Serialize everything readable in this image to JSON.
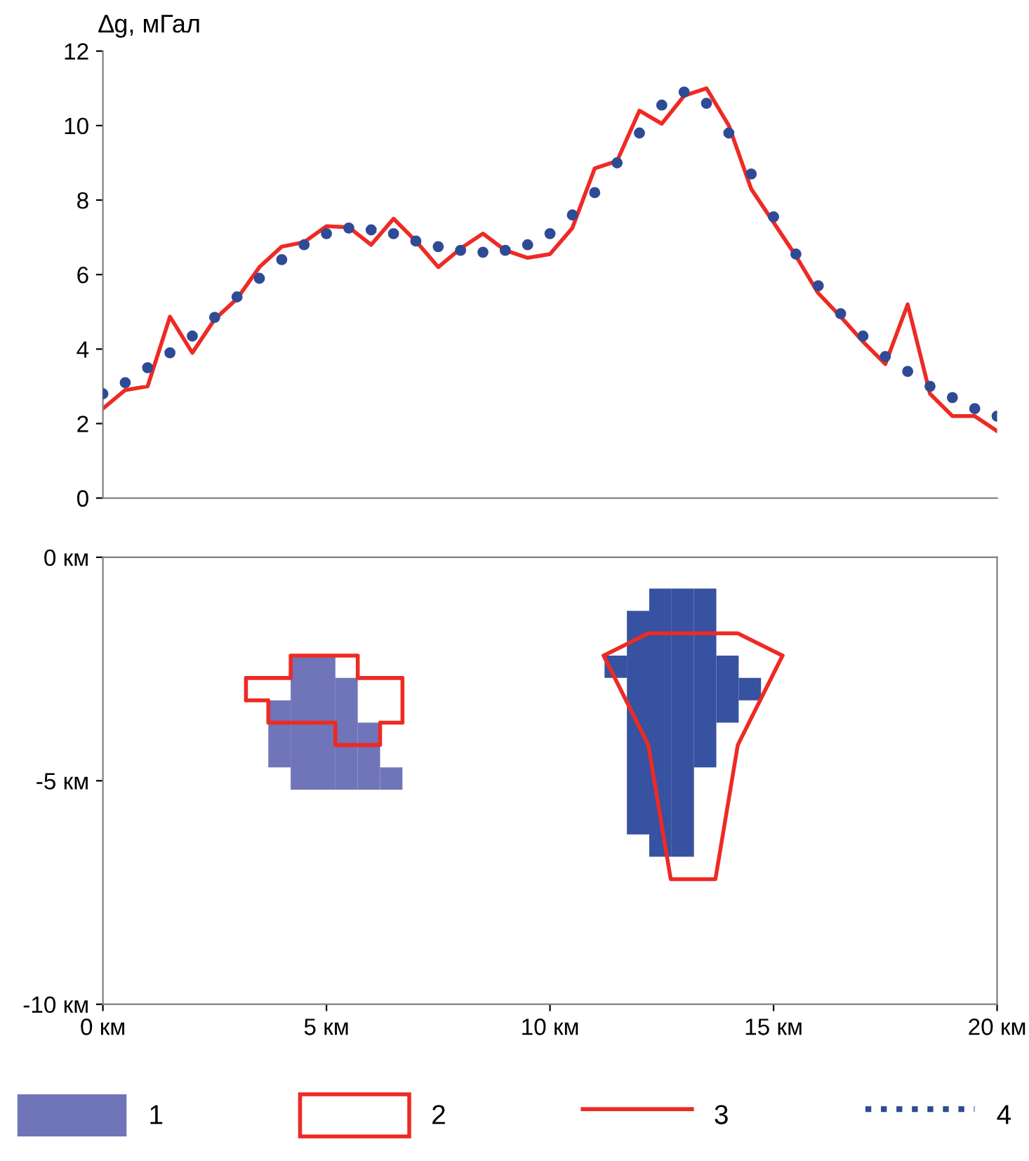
{
  "chart_data": [
    {
      "type": "line",
      "ylabel": "∆g, мГал",
      "xlim": [
        0,
        20
      ],
      "ylim": [
        0,
        12
      ],
      "yticks": [
        0,
        2,
        4,
        6,
        8,
        10,
        12
      ],
      "tick_labels": "y",
      "grid": false,
      "legend": "bottom",
      "x": [
        0,
        0.5,
        1,
        1.5,
        2,
        2.5,
        3,
        3.5,
        4,
        4.5,
        5,
        5.5,
        6,
        6.5,
        7,
        7.5,
        8,
        8.5,
        9,
        9.5,
        10,
        10.5,
        11,
        11.5,
        12,
        12.5,
        13,
        13.5,
        14,
        14.5,
        15,
        15.5,
        16,
        16.5,
        17,
        17.5,
        18,
        18.5,
        19,
        19.5,
        20
      ],
      "series": [
        {
          "name": "3",
          "type": "line",
          "color": "#ee2a24",
          "line_style": "solid",
          "values": [
            2.4,
            2.9,
            3.0,
            4.87,
            3.9,
            4.8,
            5.35,
            6.2,
            6.75,
            6.87,
            7.3,
            7.27,
            6.8,
            7.5,
            6.9,
            6.2,
            6.7,
            7.1,
            6.65,
            6.45,
            6.55,
            7.25,
            8.85,
            9.05,
            10.4,
            10.05,
            10.8,
            11.0,
            10.0,
            8.3,
            7.4,
            6.5,
            5.5,
            4.87,
            4.2,
            3.6,
            5.2,
            2.8,
            2.2,
            2.2,
            1.8
          ]
        },
        {
          "name": "4",
          "type": "scatter",
          "color": "#2f4b95",
          "marker": "circle",
          "values": [
            2.8,
            3.1,
            3.5,
            3.9,
            4.35,
            4.85,
            5.4,
            5.9,
            6.4,
            6.8,
            7.1,
            7.25,
            7.2,
            7.1,
            6.9,
            6.75,
            6.65,
            6.6,
            6.65,
            6.8,
            7.1,
            7.6,
            8.2,
            9.0,
            9.8,
            10.55,
            10.9,
            10.6,
            9.8,
            8.7,
            7.55,
            6.55,
            5.7,
            4.95,
            4.35,
            3.8,
            3.4,
            3.0,
            2.7,
            2.4,
            2.2
          ]
        }
      ]
    },
    {
      "type": "bar",
      "xlim": [
        0,
        20
      ],
      "ylim": [
        -10,
        0
      ],
      "grid": false,
      "legend": "bottom",
      "xticks": [
        {
          "value": 0,
          "label": "0 км"
        },
        {
          "value": 5,
          "label": "5 км"
        },
        {
          "value": 10,
          "label": "10 км"
        },
        {
          "value": 15,
          "label": "15 км"
        },
        {
          "value": 20,
          "label": "20 км"
        }
      ],
      "yticks": [
        {
          "value": 0,
          "label": "0 км"
        },
        {
          "value": -5,
          "label": "-5 км"
        },
        {
          "value": -10,
          "label": "-10 км"
        }
      ],
      "series": [
        {
          "name": "1",
          "type": "bar",
          "color": "#7074b8",
          "x": [
            3.95,
            4.45,
            4.95,
            5.45,
            5.95,
            6.45
          ],
          "base": [
            -4.7,
            -5.2,
            -5.2,
            -5.2,
            -5.2,
            -5.2
          ],
          "values": [
            1.5,
            3.0,
            3.0,
            2.5,
            1.5,
            0.5
          ]
        },
        {
          "type": "bar",
          "color": "#3652a0",
          "x": [
            11.47,
            11.97,
            12.47,
            12.97,
            13.47,
            13.97,
            14.47
          ],
          "base": [
            -2.7,
            -6.2,
            -6.7,
            -6.7,
            -4.7,
            -3.7,
            -3.2
          ],
          "values": [
            0.5,
            5.0,
            6.0,
            6.0,
            4.0,
            1.5,
            0.5
          ]
        },
        {
          "name": "2",
          "type": "line",
          "color": "#ee2a24",
          "x": [
            3.2,
            3.2,
            4.2,
            4.2,
            5.7,
            5.7,
            6.7,
            6.7
          ],
          "values": [
            -3.2,
            -2.7,
            -2.7,
            -2.2,
            -2.2,
            -2.7,
            -2.7,
            -3.7
          ]
        },
        {
          "type": "line",
          "color": "#ee2a24",
          "x": [
            3.2,
            3.7,
            3.7,
            5.2,
            5.2,
            6.2,
            6.2,
            6.7
          ],
          "values": [
            -3.2,
            -3.2,
            -3.7,
            -3.7,
            -4.2,
            -4.2,
            -3.7,
            -3.7
          ]
        },
        {
          "type": "line",
          "color": "#ee2a24",
          "x": [
            11.2,
            12.2,
            14.2,
            15.2
          ],
          "values": [
            -2.2,
            -1.7,
            -1.7,
            -2.2
          ]
        },
        {
          "type": "line",
          "color": "#ee2a24",
          "x": [
            11.2,
            12.2,
            12.7,
            13.7,
            14.2,
            15.2
          ],
          "values": [
            -2.2,
            -4.2,
            -7.2,
            -7.2,
            -4.2,
            -2.2
          ]
        }
      ]
    }
  ]
}
